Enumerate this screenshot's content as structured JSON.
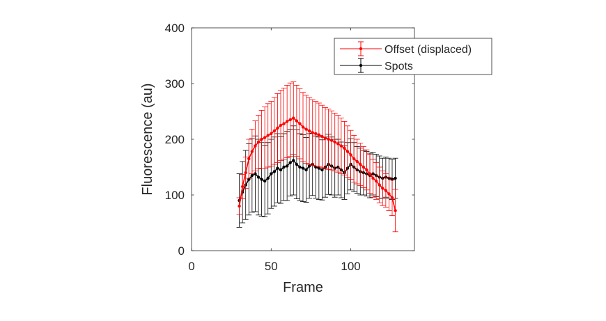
{
  "chart_data": {
    "type": "line",
    "xlabel": "Frame",
    "ylabel": "Fluorescence (au)",
    "xlim": [
      0,
      140
    ],
    "ylim": [
      0,
      400
    ],
    "xticks": [
      0,
      50,
      100
    ],
    "yticks": [
      0,
      100,
      200,
      300,
      400
    ],
    "legend_position": "top-right",
    "error_bars": true,
    "series": [
      {
        "name": "Offset (displaced)",
        "color": "#ff0000",
        "x": [
          30,
          32,
          34,
          36,
          38,
          40,
          42,
          44,
          46,
          48,
          50,
          52,
          54,
          56,
          58,
          60,
          62,
          64,
          66,
          68,
          70,
          72,
          74,
          76,
          78,
          80,
          82,
          84,
          86,
          88,
          90,
          92,
          94,
          96,
          98,
          100,
          102,
          104,
          106,
          108,
          110,
          112,
          114,
          116,
          118,
          120,
          122,
          124,
          126,
          128
        ],
        "y": [
          80,
          115,
          140,
          165,
          178,
          188,
          195,
          200,
          203,
          207,
          210,
          215,
          220,
          225,
          228,
          232,
          235,
          238,
          233,
          228,
          222,
          218,
          215,
          212,
          210,
          208,
          205,
          202,
          200,
          198,
          195,
          192,
          188,
          184,
          178,
          172,
          165,
          160,
          155,
          150,
          145,
          138,
          130,
          125,
          118,
          112,
          108,
          102,
          95,
          72
        ],
        "error": [
          15,
          22,
          28,
          35,
          40,
          45,
          48,
          52,
          55,
          57,
          58,
          60,
          62,
          63,
          64,
          65,
          66,
          65,
          64,
          63,
          62,
          61,
          60,
          59,
          58,
          57,
          56,
          55,
          54,
          53,
          52,
          51,
          50,
          48,
          46,
          44,
          42,
          40,
          38,
          37,
          36,
          35,
          34,
          33,
          32,
          31,
          30,
          30,
          32,
          38
        ]
      },
      {
        "name": "Spots",
        "color": "#000000",
        "x": [
          30,
          32,
          34,
          36,
          38,
          40,
          42,
          44,
          46,
          48,
          50,
          52,
          54,
          56,
          58,
          60,
          62,
          64,
          66,
          68,
          70,
          72,
          74,
          76,
          78,
          80,
          82,
          84,
          86,
          88,
          90,
          92,
          94,
          96,
          98,
          100,
          102,
          104,
          106,
          108,
          110,
          112,
          114,
          116,
          118,
          120,
          122,
          124,
          126,
          128
        ],
        "y": [
          90,
          105,
          118,
          128,
          135,
          138,
          132,
          128,
          125,
          130,
          138,
          142,
          148,
          145,
          150,
          152,
          158,
          162,
          155,
          150,
          148,
          145,
          152,
          155,
          150,
          148,
          145,
          150,
          155,
          152,
          148,
          150,
          145,
          140,
          148,
          155,
          150,
          145,
          142,
          140,
          138,
          135,
          138,
          135,
          132,
          130,
          132,
          130,
          128,
          130
        ],
        "error": [
          48,
          55,
          62,
          64,
          66,
          68,
          68,
          66,
          64,
          64,
          62,
          62,
          62,
          60,
          60,
          62,
          60,
          62,
          62,
          60,
          60,
          58,
          58,
          56,
          56,
          56,
          54,
          54,
          54,
          52,
          52,
          50,
          50,
          48,
          46,
          46,
          44,
          42,
          42,
          40,
          40,
          40,
          38,
          38,
          38,
          36,
          36,
          36,
          36,
          36
        ]
      }
    ]
  }
}
